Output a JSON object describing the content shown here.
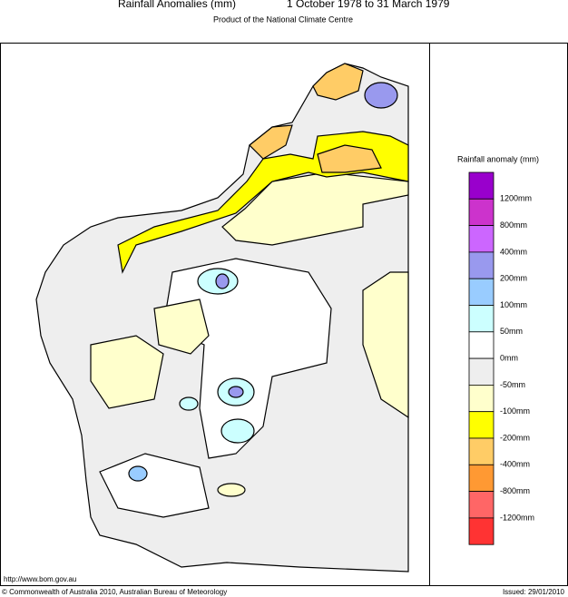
{
  "header": {
    "title": "Rainfall Anomalies (mm)",
    "period": "1 October 1978 to 31 March 1979",
    "subtitle": "Product of the National Climate Centre"
  },
  "legend": {
    "title": "Rainfall anomaly (mm)",
    "colors": [
      "#9900cc",
      "#cc33cc",
      "#cc66ff",
      "#9999ee",
      "#99ccff",
      "#ccffff",
      "#ffffff",
      "#eeeeee",
      "#ffffcc",
      "#ffff00",
      "#ffcc66",
      "#ff9933",
      "#ff6666",
      "#ff3333"
    ],
    "labels": [
      "1200mm",
      "800mm",
      "400mm",
      "200mm",
      "100mm",
      "50mm",
      "0mm",
      "-50mm",
      "-100mm",
      "-200mm",
      "-400mm",
      "-800mm",
      "-1200mm"
    ]
  },
  "footer": {
    "url": "http://www.bom.gov.au",
    "copyright": "© Commonwealth of Australia 2010, Australian Bureau of Meteorology",
    "issued": "Issued: 29/01/2010"
  }
}
